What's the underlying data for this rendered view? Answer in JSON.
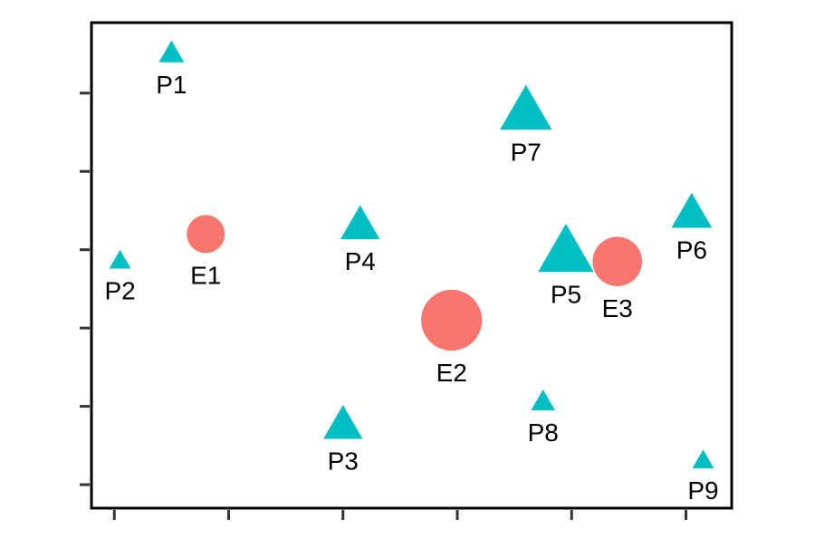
{
  "chart_data": {
    "type": "scatter",
    "title": "",
    "xlabel": "",
    "ylabel": "",
    "xlim": [
      -0.2,
      5.4
    ],
    "ylim": [
      -0.3,
      5.9
    ],
    "x_ticks": [
      0,
      1,
      2,
      3,
      4,
      5
    ],
    "y_ticks": [
      0,
      1,
      2,
      3,
      4,
      5
    ],
    "tick_labels_shown": false,
    "grid": false,
    "legend": "none",
    "colors": {
      "P": "#00BFC4",
      "E": "#F8766D",
      "axis": "#000000",
      "tick": "#333333"
    },
    "series": [
      {
        "marker": "triangle",
        "points": [
          {
            "label": "P1",
            "x": 0.5,
            "y": 5.5,
            "size": 1.0
          },
          {
            "label": "P2",
            "x": 0.05,
            "y": 2.85,
            "size": 0.85
          },
          {
            "label": "P3",
            "x": 2.0,
            "y": 0.75,
            "size": 1.55
          },
          {
            "label": "P4",
            "x": 2.15,
            "y": 3.3,
            "size": 1.55
          },
          {
            "label": "P5",
            "x": 3.95,
            "y": 2.95,
            "size": 2.2
          },
          {
            "label": "P6",
            "x": 5.05,
            "y": 3.45,
            "size": 1.6
          },
          {
            "label": "P7",
            "x": 3.6,
            "y": 4.75,
            "size": 2.05
          },
          {
            "label": "P8",
            "x": 3.75,
            "y": 1.05,
            "size": 0.95
          },
          {
            "label": "P9",
            "x": 5.15,
            "y": 0.3,
            "size": 0.85
          }
        ]
      },
      {
        "marker": "circle",
        "points": [
          {
            "label": "E1",
            "x": 0.8,
            "y": 3.2,
            "size": 1.0
          },
          {
            "label": "E2",
            "x": 2.95,
            "y": 2.1,
            "size": 1.6
          },
          {
            "label": "E3",
            "x": 4.4,
            "y": 2.85,
            "size": 1.3
          }
        ]
      }
    ]
  }
}
